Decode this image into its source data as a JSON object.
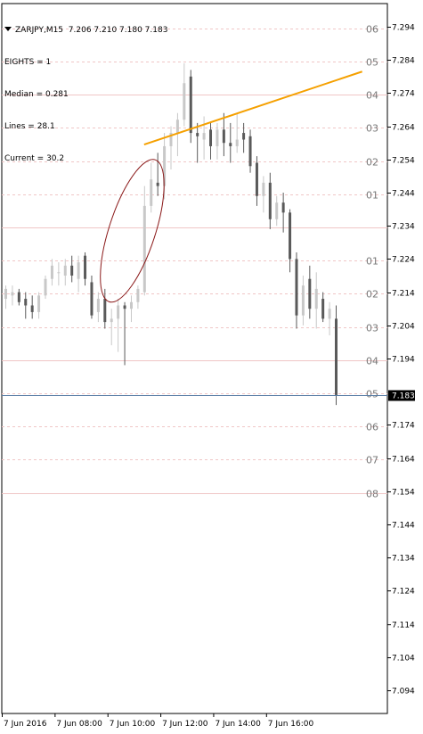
{
  "header": {
    "symbol_timeframe": "ZARJPY,M15",
    "ohlc": "7.206 7.210 7.180 7.183",
    "lines": [
      "EIGHTS = 1",
      "Median = 0.281",
      "Lines = 28.1",
      "Current = 30.2"
    ]
  },
  "colors": {
    "background": "#ffffff",
    "bull_candle": "#c8c8c8",
    "bear_candle": "#5a5a5a",
    "dashed_grid": "#f0c6c6",
    "solid_level": "#f0c6c6",
    "trendline": "#f5a000",
    "ellipse": "#8b1a1a",
    "current_line": "#5b7ea6",
    "current_label_bg": "#000000",
    "current_label_text": "#ffffff"
  },
  "chart_data": {
    "type": "candlestick",
    "ylim": [
      7.087,
      7.301
    ],
    "y_ticks": [
      "7.294",
      "7.284",
      "7.274",
      "7.264",
      "7.254",
      "7.244",
      "7.234",
      "7.224",
      "7.214",
      "7.204",
      "7.194",
      "7.174",
      "7.164",
      "7.154",
      "7.144",
      "7.134",
      "7.124",
      "7.114",
      "7.104",
      "7.094"
    ],
    "y_tick_values": [
      7.294,
      7.284,
      7.274,
      7.264,
      7.254,
      7.244,
      7.234,
      7.224,
      7.214,
      7.204,
      7.194,
      7.174,
      7.164,
      7.154,
      7.144,
      7.134,
      7.124,
      7.114,
      7.104,
      7.094
    ],
    "current_price": "7.183",
    "current_value": 7.183,
    "x_labels": [
      "7 Jun 2016",
      "7 Jun 08:00",
      "7 Jun 10:00",
      "7 Jun 12:00",
      "7 Jun 14:00",
      "7 Jun 16:00"
    ],
    "x_label_bar_index": [
      0,
      8,
      16,
      24,
      32,
      40
    ],
    "murrey_levels": [
      {
        "label": "06",
        "value": 7.2935,
        "style": "dashed"
      },
      {
        "label": "05",
        "value": 7.2835,
        "style": "dashed"
      },
      {
        "label": "04",
        "value": 7.2735,
        "style": "solid"
      },
      {
        "label": "03",
        "value": 7.2635,
        "style": "dashed"
      },
      {
        "label": "02",
        "value": 7.2535,
        "style": "dashed"
      },
      {
        "label": "01",
        "value": 7.2435,
        "style": "dashed"
      },
      {
        "label": "",
        "value": 7.2335,
        "style": "solid"
      },
      {
        "label": "01",
        "value": 7.2235,
        "style": "dashed"
      },
      {
        "label": "02",
        "value": 7.2135,
        "style": "dashed"
      },
      {
        "label": "03",
        "value": 7.2035,
        "style": "dashed"
      },
      {
        "label": "04",
        "value": 7.1935,
        "style": "solid"
      },
      {
        "label": "05",
        "value": 7.1835,
        "style": "dashed"
      },
      {
        "label": "06",
        "value": 7.1735,
        "style": "dashed"
      },
      {
        "label": "07",
        "value": 7.1635,
        "style": "dashed"
      },
      {
        "label": "08",
        "value": 7.1535,
        "style": "solid"
      }
    ],
    "candles": [
      {
        "o": 7.212,
        "h": 7.216,
        "l": 7.209,
        "c": 7.215
      },
      {
        "o": 7.213,
        "h": 7.216,
        "l": 7.21,
        "c": 7.214
      },
      {
        "o": 7.214,
        "h": 7.215,
        "l": 7.21,
        "c": 7.211
      },
      {
        "o": 7.212,
        "h": 7.214,
        "l": 7.206,
        "c": 7.21
      },
      {
        "o": 7.21,
        "h": 7.213,
        "l": 7.206,
        "c": 7.208
      },
      {
        "o": 7.208,
        "h": 7.214,
        "l": 7.206,
        "c": 7.213
      },
      {
        "o": 7.213,
        "h": 7.219,
        "l": 7.212,
        "c": 7.218
      },
      {
        "o": 7.218,
        "h": 7.224,
        "l": 7.216,
        "c": 7.222
      },
      {
        "o": 7.22,
        "h": 7.223,
        "l": 7.216,
        "c": 7.22
      },
      {
        "o": 7.219,
        "h": 7.224,
        "l": 7.216,
        "c": 7.222
      },
      {
        "o": 7.222,
        "h": 7.225,
        "l": 7.217,
        "c": 7.219
      },
      {
        "o": 7.218,
        "h": 7.225,
        "l": 7.214,
        "c": 7.223
      },
      {
        "o": 7.225,
        "h": 7.226,
        "l": 7.216,
        "c": 7.218
      },
      {
        "o": 7.217,
        "h": 7.219,
        "l": 7.206,
        "c": 7.207
      },
      {
        "o": 7.208,
        "h": 7.214,
        "l": 7.205,
        "c": 7.212
      },
      {
        "o": 7.212,
        "h": 7.215,
        "l": 7.203,
        "c": 7.205
      },
      {
        "o": 7.205,
        "h": 7.209,
        "l": 7.198,
        "c": 7.206
      },
      {
        "o": 7.206,
        "h": 7.212,
        "l": 7.196,
        "c": 7.21
      },
      {
        "o": 7.21,
        "h": 7.211,
        "l": 7.192,
        "c": 7.209
      },
      {
        "o": 7.209,
        "h": 7.213,
        "l": 7.205,
        "c": 7.211
      },
      {
        "o": 7.211,
        "h": 7.216,
        "l": 7.209,
        "c": 7.215
      },
      {
        "o": 7.214,
        "h": 7.246,
        "l": 7.213,
        "c": 7.24
      },
      {
        "o": 7.24,
        "h": 7.253,
        "l": 7.238,
        "c": 7.248
      },
      {
        "o": 7.247,
        "h": 7.256,
        "l": 7.243,
        "c": 7.246
      },
      {
        "o": 7.246,
        "h": 7.262,
        "l": 7.242,
        "c": 7.258
      },
      {
        "o": 7.258,
        "h": 7.264,
        "l": 7.251,
        "c": 7.262
      },
      {
        "o": 7.262,
        "h": 7.268,
        "l": 7.255,
        "c": 7.266
      },
      {
        "o": 7.266,
        "h": 7.283,
        "l": 7.264,
        "c": 7.277
      },
      {
        "o": 7.279,
        "h": 7.281,
        "l": 7.259,
        "c": 7.262
      },
      {
        "o": 7.262,
        "h": 7.265,
        "l": 7.253,
        "c": 7.261
      },
      {
        "o": 7.26,
        "h": 7.267,
        "l": 7.254,
        "c": 7.262
      },
      {
        "o": 7.263,
        "h": 7.265,
        "l": 7.254,
        "c": 7.258
      },
      {
        "o": 7.258,
        "h": 7.265,
        "l": 7.254,
        "c": 7.263
      },
      {
        "o": 7.263,
        "h": 7.268,
        "l": 7.255,
        "c": 7.259
      },
      {
        "o": 7.259,
        "h": 7.265,
        "l": 7.253,
        "c": 7.258
      },
      {
        "o": 7.258,
        "h": 7.268,
        "l": 7.256,
        "c": 7.26
      },
      {
        "o": 7.262,
        "h": 7.265,
        "l": 7.256,
        "c": 7.26
      },
      {
        "o": 7.261,
        "h": 7.263,
        "l": 7.25,
        "c": 7.252
      },
      {
        "o": 7.253,
        "h": 7.255,
        "l": 7.24,
        "c": 7.243
      },
      {
        "o": 7.243,
        "h": 7.249,
        "l": 7.238,
        "c": 7.247
      },
      {
        "o": 7.247,
        "h": 7.25,
        "l": 7.233,
        "c": 7.236
      },
      {
        "o": 7.236,
        "h": 7.243,
        "l": 7.234,
        "c": 7.241
      },
      {
        "o": 7.241,
        "h": 7.244,
        "l": 7.232,
        "c": 7.238
      },
      {
        "o": 7.238,
        "h": 7.239,
        "l": 7.22,
        "c": 7.224
      },
      {
        "o": 7.224,
        "h": 7.226,
        "l": 7.203,
        "c": 7.207
      },
      {
        "o": 7.207,
        "h": 7.219,
        "l": 7.204,
        "c": 7.216
      },
      {
        "o": 7.218,
        "h": 7.222,
        "l": 7.206,
        "c": 7.209
      },
      {
        "o": 7.209,
        "h": 7.22,
        "l": 7.203,
        "c": 7.215
      },
      {
        "o": 7.212,
        "h": 7.214,
        "l": 7.205,
        "c": 7.206
      },
      {
        "o": 7.206,
        "h": 7.211,
        "l": 7.201,
        "c": 7.209
      },
      {
        "o": 7.206,
        "h": 7.21,
        "l": 7.18,
        "c": 7.183
      }
    ],
    "trendline": {
      "from": {
        "bar": 21,
        "y": 7.2585
      },
      "to": {
        "bar": 54,
        "y": 7.2805
      }
    },
    "ellipse": {
      "center_bar": 19.2,
      "center_y": 7.2325,
      "rx_bars": 3.5,
      "ry_price": 0.0225,
      "rotation_deg": 18
    }
  }
}
